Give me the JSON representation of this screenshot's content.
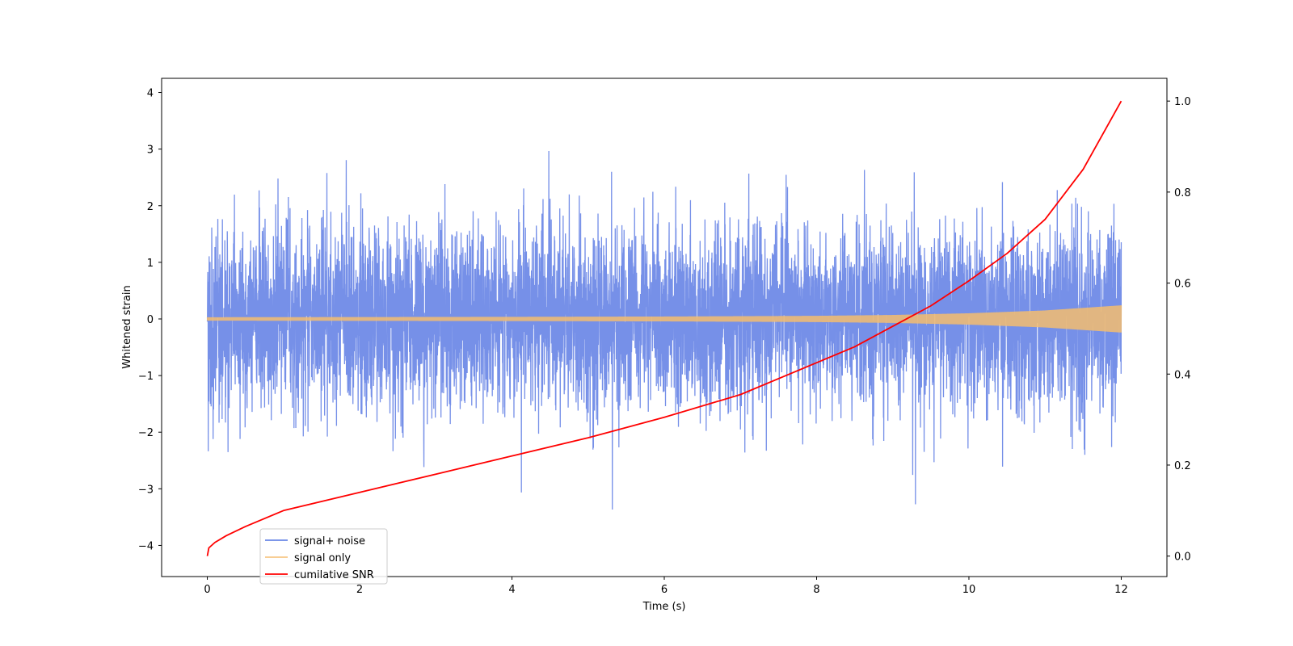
{
  "chart_data": {
    "type": "line",
    "title": "",
    "xlabel": "Time (s)",
    "ylabel": "Whitened strain",
    "y2label": "",
    "xlim": [
      -0.6,
      12.6
    ],
    "ylim": [
      -4.55,
      4.25
    ],
    "y2lim": [
      -0.045,
      1.05
    ],
    "x_ticks": [
      0,
      2,
      4,
      6,
      8,
      10,
      12
    ],
    "y_ticks": [
      -4,
      -3,
      -2,
      -1,
      0,
      1,
      2,
      3,
      4
    ],
    "y2_ticks": [
      0.0,
      0.2,
      0.4,
      0.6,
      0.8,
      1.0
    ],
    "x_tick_labels": [
      "0",
      "2",
      "4",
      "6",
      "8",
      "10",
      "12"
    ],
    "y_tick_labels": [
      "−4",
      "−3",
      "−2",
      "−1",
      "0",
      "1",
      "2",
      "3",
      "4"
    ],
    "y2_tick_labels": [
      "0.0",
      "0.2",
      "0.4",
      "0.6",
      "0.8",
      "1.0"
    ],
    "grid": false,
    "legend_position": "lower-left",
    "series": [
      {
        "name": "signal+ noise",
        "color": "#6a87e6",
        "axis": "left",
        "duration_s": 12,
        "noise_sigma": 0.8
      },
      {
        "name": "signal only",
        "color": "#f5bd6e",
        "axis": "left",
        "envelope": {
          "x": [
            0,
            2,
            4,
            6,
            8,
            9,
            10,
            11,
            12
          ],
          "amplitude": [
            0.03,
            0.033,
            0.037,
            0.043,
            0.055,
            0.07,
            0.1,
            0.15,
            0.24
          ]
        }
      },
      {
        "name": "cumilative SNR",
        "color": "#ff0000",
        "axis": "right",
        "x": [
          0,
          0.02,
          0.1,
          0.25,
          0.5,
          1,
          1.5,
          2,
          3,
          4,
          5,
          6,
          7,
          8,
          8.5,
          9,
          9.5,
          10,
          10.5,
          11,
          11.5,
          12
        ],
        "y": [
          0.0,
          0.018,
          0.03,
          0.045,
          0.065,
          0.1,
          0.12,
          0.14,
          0.18,
          0.22,
          0.26,
          0.305,
          0.355,
          0.425,
          0.46,
          0.505,
          0.55,
          0.605,
          0.665,
          0.74,
          0.85,
          1.0
        ]
      }
    ]
  }
}
